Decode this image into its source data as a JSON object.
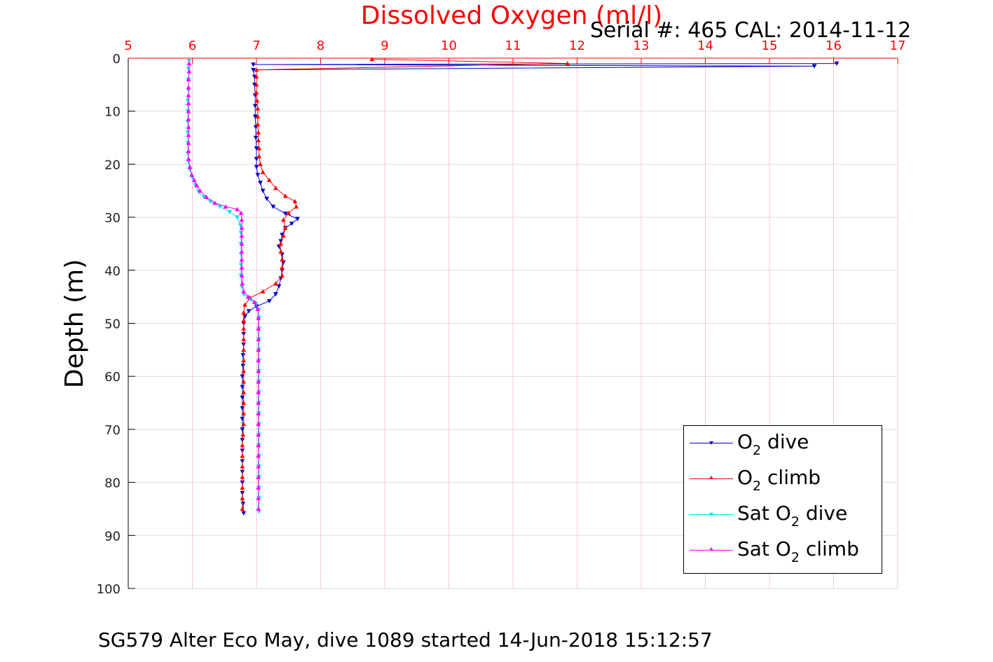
{
  "caption": "SG579 Alter Eco May, dive 1089 started 14-Jun-2018 15:12:57",
  "serial_label": "Serial #: 465  CAL: 2014-11-12",
  "chart_data": {
    "type": "line",
    "title": "Dissolved Oxygen (ml/l)",
    "xlabel": "Dissolved Oxygen (ml/l)",
    "ylabel": "Depth (m)",
    "xlim": [
      5,
      17
    ],
    "ylim": [
      0,
      100
    ],
    "y_reversed": true,
    "x_axis_position": "top",
    "x_ticks": [
      5,
      6,
      7,
      8,
      9,
      10,
      11,
      12,
      13,
      14,
      15,
      16,
      17
    ],
    "y_ticks": [
      0,
      10,
      20,
      30,
      40,
      50,
      60,
      70,
      80,
      90,
      100
    ],
    "grid": true,
    "legend_placement": "bottom-right",
    "colors": {
      "title": "#ff0000",
      "x_ticks": "#ff0000",
      "axis": "#000000",
      "grid": "#dcdcdc"
    },
    "series": [
      {
        "key": "o2_dive",
        "label_main": "O",
        "label_sub": "2",
        "label_pre": "",
        "label_post": " dive",
        "color": "#0000cc",
        "marker": "triangle-down",
        "points": [
          [
            16.05,
            1.0
          ],
          [
            6.95,
            1.2
          ],
          [
            15.7,
            1.5
          ],
          [
            6.95,
            2.2
          ],
          [
            6.97,
            3.5
          ],
          [
            6.97,
            5
          ],
          [
            6.98,
            7
          ],
          [
            6.98,
            9
          ],
          [
            6.98,
            11
          ],
          [
            6.99,
            13
          ],
          [
            6.99,
            15
          ],
          [
            7.0,
            17
          ],
          [
            7.0,
            19
          ],
          [
            7.0,
            20.5
          ],
          [
            7.02,
            22
          ],
          [
            7.06,
            23.5
          ],
          [
            7.1,
            25
          ],
          [
            7.16,
            26.5
          ],
          [
            7.26,
            28
          ],
          [
            7.45,
            29.3
          ],
          [
            7.64,
            30.3
          ],
          [
            7.55,
            31.2
          ],
          [
            7.45,
            32
          ],
          [
            7.4,
            33.3
          ],
          [
            7.38,
            34.5
          ],
          [
            7.35,
            35.5
          ],
          [
            7.4,
            37
          ],
          [
            7.42,
            38.5
          ],
          [
            7.4,
            40
          ],
          [
            7.38,
            41.5
          ],
          [
            7.35,
            43
          ],
          [
            7.3,
            44.5
          ],
          [
            7.2,
            45.8
          ],
          [
            7.0,
            46.8
          ],
          [
            6.88,
            47.7
          ],
          [
            6.82,
            48.7
          ],
          [
            6.8,
            50
          ],
          [
            6.8,
            52
          ],
          [
            6.8,
            54
          ],
          [
            6.79,
            56
          ],
          [
            6.79,
            58
          ],
          [
            6.78,
            60
          ],
          [
            6.78,
            62
          ],
          [
            6.78,
            64
          ],
          [
            6.78,
            66
          ],
          [
            6.78,
            68
          ],
          [
            6.78,
            70
          ],
          [
            6.78,
            72
          ],
          [
            6.78,
            74
          ],
          [
            6.78,
            76
          ],
          [
            6.78,
            78
          ],
          [
            6.78,
            80
          ],
          [
            6.78,
            82
          ],
          [
            6.79,
            84
          ],
          [
            6.8,
            85.8
          ]
        ]
      },
      {
        "key": "o2_climb",
        "label_main": "O",
        "label_sub": "2",
        "label_pre": "",
        "label_post": " climb",
        "color": "#ff0000",
        "marker": "triangle-up",
        "points": [
          [
            6.78,
            85
          ],
          [
            6.78,
            83
          ],
          [
            6.78,
            81
          ],
          [
            6.78,
            79
          ],
          [
            6.78,
            77
          ],
          [
            6.78,
            75
          ],
          [
            6.78,
            73
          ],
          [
            6.79,
            71
          ],
          [
            6.8,
            69
          ],
          [
            6.8,
            67
          ],
          [
            6.8,
            65
          ],
          [
            6.8,
            63
          ],
          [
            6.8,
            61
          ],
          [
            6.8,
            59
          ],
          [
            6.8,
            57
          ],
          [
            6.8,
            55
          ],
          [
            6.8,
            53
          ],
          [
            6.8,
            51
          ],
          [
            6.8,
            49.5
          ],
          [
            6.8,
            48
          ],
          [
            6.82,
            46.5
          ],
          [
            6.9,
            45.2
          ],
          [
            7.1,
            44
          ],
          [
            7.3,
            42.5
          ],
          [
            7.4,
            41
          ],
          [
            7.4,
            39.5
          ],
          [
            7.4,
            38
          ],
          [
            7.38,
            36.5
          ],
          [
            7.38,
            35
          ],
          [
            7.42,
            33.5
          ],
          [
            7.45,
            32
          ],
          [
            7.42,
            30.5
          ],
          [
            7.5,
            29.2
          ],
          [
            7.62,
            28
          ],
          [
            7.6,
            27
          ],
          [
            7.45,
            26
          ],
          [
            7.3,
            24.5
          ],
          [
            7.2,
            23
          ],
          [
            7.1,
            21.5
          ],
          [
            7.06,
            20
          ],
          [
            7.04,
            18.5
          ],
          [
            7.04,
            17
          ],
          [
            7.03,
            15.5
          ],
          [
            7.03,
            14
          ],
          [
            7.02,
            12.5
          ],
          [
            7.02,
            11
          ],
          [
            7.02,
            9.5
          ],
          [
            7.01,
            8
          ],
          [
            7.0,
            6.5
          ],
          [
            7.0,
            5
          ],
          [
            7.0,
            3.5
          ],
          [
            7.0,
            2.2
          ],
          [
            11.85,
            1.0
          ],
          [
            8.8,
            0.2
          ]
        ]
      },
      {
        "key": "sat_dive",
        "label_main": "O",
        "label_sub": "2",
        "label_pre": "Sat ",
        "label_post": " dive",
        "color": "#00e5ee",
        "marker": "triangle-down",
        "points": [
          [
            5.95,
            0.5
          ],
          [
            5.94,
            2
          ],
          [
            5.94,
            4
          ],
          [
            5.94,
            6
          ],
          [
            5.93,
            8
          ],
          [
            5.93,
            10
          ],
          [
            5.93,
            12
          ],
          [
            5.93,
            14
          ],
          [
            5.93,
            16
          ],
          [
            5.93,
            18
          ],
          [
            5.94,
            19.5
          ],
          [
            5.96,
            21
          ],
          [
            6.0,
            22.5
          ],
          [
            6.05,
            24
          ],
          [
            6.1,
            25.2
          ],
          [
            6.18,
            26.2
          ],
          [
            6.28,
            27
          ],
          [
            6.43,
            28
          ],
          [
            6.58,
            29
          ],
          [
            6.7,
            30
          ],
          [
            6.75,
            31.5
          ],
          [
            6.76,
            33
          ],
          [
            6.76,
            35
          ],
          [
            6.76,
            37
          ],
          [
            6.76,
            39
          ],
          [
            6.76,
            41
          ],
          [
            6.77,
            43
          ],
          [
            6.8,
            44.5
          ],
          [
            6.9,
            45.5
          ],
          [
            6.99,
            46.3
          ],
          [
            7.03,
            47.5
          ],
          [
            7.04,
            49
          ],
          [
            7.04,
            51
          ],
          [
            7.04,
            53
          ],
          [
            7.04,
            55
          ],
          [
            7.04,
            57
          ],
          [
            7.04,
            59
          ],
          [
            7.04,
            61
          ],
          [
            7.04,
            63
          ],
          [
            7.04,
            65
          ],
          [
            7.04,
            67
          ],
          [
            7.04,
            69
          ],
          [
            7.04,
            71
          ],
          [
            7.04,
            73
          ],
          [
            7.04,
            75
          ],
          [
            7.04,
            77
          ],
          [
            7.04,
            79
          ],
          [
            7.04,
            81
          ],
          [
            7.04,
            83
          ],
          [
            7.04,
            85.5
          ]
        ]
      },
      {
        "key": "sat_climb",
        "label_main": "O",
        "label_sub": "2",
        "label_pre": "Sat ",
        "label_post": " climb",
        "color": "#ff00ff",
        "marker": "triangle-up",
        "points": [
          [
            7.03,
            85
          ],
          [
            7.03,
            83
          ],
          [
            7.03,
            81
          ],
          [
            7.03,
            79
          ],
          [
            7.03,
            77
          ],
          [
            7.03,
            75
          ],
          [
            7.03,
            73
          ],
          [
            7.03,
            71
          ],
          [
            7.03,
            69
          ],
          [
            7.03,
            67
          ],
          [
            7.03,
            65
          ],
          [
            7.03,
            63
          ],
          [
            7.03,
            61
          ],
          [
            7.03,
            59
          ],
          [
            7.03,
            57
          ],
          [
            7.03,
            55
          ],
          [
            7.03,
            53
          ],
          [
            7.03,
            51
          ],
          [
            7.03,
            49
          ],
          [
            7.02,
            47.3
          ],
          [
            6.97,
            46
          ],
          [
            6.87,
            45
          ],
          [
            6.8,
            44
          ],
          [
            6.78,
            42.5
          ],
          [
            6.77,
            41
          ],
          [
            6.77,
            39.5
          ],
          [
            6.77,
            38
          ],
          [
            6.77,
            36.5
          ],
          [
            6.77,
            35
          ],
          [
            6.77,
            33.5
          ],
          [
            6.77,
            32
          ],
          [
            6.77,
            30.5
          ],
          [
            6.76,
            29.2
          ],
          [
            6.7,
            28.5
          ],
          [
            6.52,
            28
          ],
          [
            6.35,
            27.3
          ],
          [
            6.22,
            26.2
          ],
          [
            6.12,
            25
          ],
          [
            6.07,
            24
          ],
          [
            6.03,
            23
          ],
          [
            5.99,
            22
          ],
          [
            5.96,
            20.5
          ],
          [
            5.94,
            19
          ],
          [
            5.94,
            17.5
          ],
          [
            5.94,
            16
          ],
          [
            5.94,
            14.5
          ],
          [
            5.94,
            13
          ],
          [
            5.94,
            11.5
          ],
          [
            5.94,
            10
          ],
          [
            5.94,
            8.5
          ],
          [
            5.94,
            7
          ],
          [
            5.94,
            5.5
          ],
          [
            5.94,
            4
          ],
          [
            5.95,
            2.5
          ],
          [
            5.95,
            1
          ]
        ]
      }
    ]
  }
}
